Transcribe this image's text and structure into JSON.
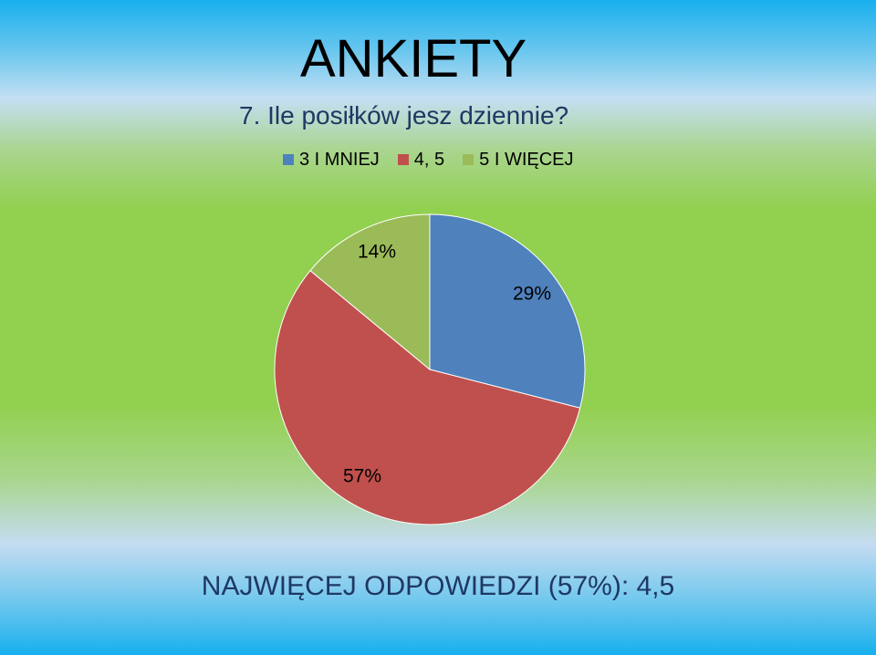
{
  "page": {
    "title": "ANKIETY",
    "footer": "NAJWIĘCEJ ODPOWIEDZI (57%): 4,5"
  },
  "chart_data": {
    "type": "pie",
    "title": "7. Ile posiłków jesz dziennie?",
    "legend_position": "top",
    "categories": [
      "3 I MNIEJ",
      "4, 5",
      "5 I WIĘCEJ"
    ],
    "values": [
      29,
      57,
      14
    ],
    "labels": [
      "29%",
      "57%",
      "14%"
    ],
    "colors": [
      "#4f81bd",
      "#c0504d",
      "#9bbb59"
    ]
  }
}
